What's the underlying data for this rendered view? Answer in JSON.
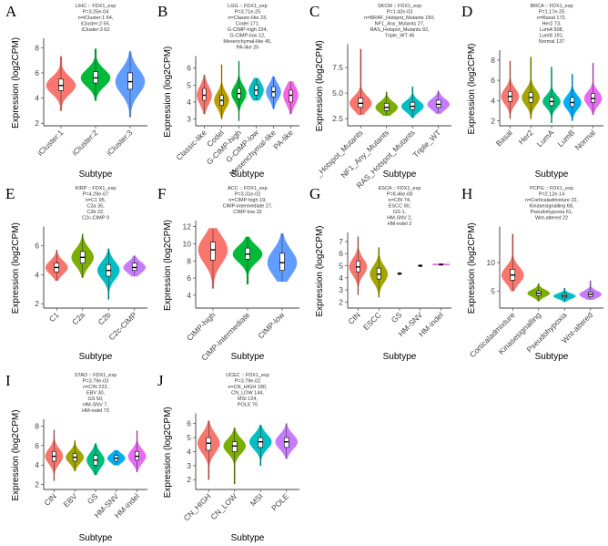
{
  "chart_data": [
    {
      "type": "violin",
      "panel": "A",
      "title": "LIHC :: FDX1_exp",
      "subtitle": [
        "P=3.25e-04",
        "n=iCluster:1 64,",
        "iCluster:2 55,",
        "iCluster:3 62"
      ],
      "xlabel": "Subtype",
      "ylabel": "Expression (log2CPM)",
      "categories": [
        "iCluster:1",
        "iCluster:2",
        "iCluster:3"
      ],
      "colors": [
        "#F8766D",
        "#00BA38",
        "#619CFF"
      ],
      "ylim": [
        1.8,
        8.6
      ],
      "yticks": [
        2,
        4,
        6,
        8
      ],
      "median": [
        5.0,
        5.6,
        5.3
      ],
      "q1": [
        4.6,
        5.2,
        4.7
      ],
      "q3": [
        5.5,
        6.1,
        6.0
      ],
      "min": [
        3.0,
        3.8,
        2.5
      ],
      "max": [
        7.3,
        7.9,
        7.7
      ]
    },
    {
      "type": "violin",
      "panel": "B",
      "title": "LGG :: FDX1_exp",
      "subtitle": [
        "P=3.71e-25",
        "n=Classic-like 23,",
        "Codel 171,",
        "G-CIMP-high 234,",
        "G-CIMP-low 12,",
        "Mesenchymal-like 45,",
        "PA-like 25"
      ],
      "xlabel": "Subtype",
      "ylabel": "Expression (log2CPM)",
      "categories": [
        "Classic-like",
        "Codel",
        "G-CIMP-high",
        "G-CIMP-low",
        "Mesenchymal-like",
        "PA-like"
      ],
      "colors": [
        "#F8766D",
        "#B79F00",
        "#00BA38",
        "#00BFC4",
        "#619CFF",
        "#F564E3"
      ],
      "ylim": [
        2.6,
        6.6
      ],
      "yticks": [
        3,
        4,
        5,
        6
      ],
      "median": [
        4.4,
        4.1,
        4.5,
        4.7,
        4.6,
        4.4
      ],
      "q1": [
        4.1,
        3.8,
        4.2,
        4.4,
        4.3,
        4.0
      ],
      "q3": [
        4.8,
        4.4,
        4.8,
        5.0,
        4.9,
        4.7
      ],
      "min": [
        3.3,
        3.0,
        2.9,
        4.1,
        3.6,
        3.3
      ],
      "max": [
        5.6,
        6.2,
        6.4,
        5.4,
        5.5,
        5.2
      ]
    },
    {
      "type": "violin",
      "panel": "C",
      "title": "SKCM :: FDX1_exp",
      "subtitle": [
        "P=1.42e-03",
        "n=BRAF_Hotspot_Mutants 150,",
        "NF1_Any_Mutants 27,",
        "RAS_Hotspot_Mutants 92,",
        "Triple_WT 46"
      ],
      "xlabel": "Subtype",
      "ylabel": "Expression (log2CPM)",
      "categories": [
        "_Hotspot_Mutants",
        "NF1_Any_Mutants",
        "RAS_Hotspot_Mutants",
        "Triple_WT"
      ],
      "colors": [
        "#F8766D",
        "#7CAE00",
        "#00BFC4",
        "#C77CFF"
      ],
      "ylim": [
        1.8,
        9.6
      ],
      "yticks": [
        2.5,
        {
          "value": 5,
          "label": "5.0"
        },
        7.5
      ],
      "median": [
        4.0,
        3.6,
        3.7,
        3.9
      ],
      "q1": [
        3.6,
        3.3,
        3.4,
        3.6
      ],
      "q3": [
        4.5,
        4.0,
        4.1,
        4.3
      ],
      "min": [
        2.9,
        2.8,
        2.6,
        3.0
      ],
      "max": [
        9.3,
        5.1,
        5.6,
        5.2
      ]
    },
    {
      "type": "violin",
      "panel": "D",
      "title": "BRCA :: FDX1_exp",
      "subtitle": [
        "P=1.17e-25",
        "n=Basal 172,",
        "Her2 73,",
        "LumA 508,",
        "LumB 191,",
        "Normal 137"
      ],
      "xlabel": "Subtype",
      "ylabel": "Expression (log2CPM)",
      "categories": [
        "Basal",
        "Her2",
        "LumA",
        "LumB",
        "Normal"
      ],
      "colors": [
        "#F8766D",
        "#A3A500",
        "#00BF7D",
        "#00B0F6",
        "#E76BF3"
      ],
      "ylim": [
        1.5,
        8.8
      ],
      "yticks": [
        2,
        4,
        6,
        8
      ],
      "median": [
        4.4,
        4.3,
        3.9,
        3.8,
        4.2
      ],
      "q1": [
        3.9,
        3.8,
        3.5,
        3.4,
        3.8
      ],
      "q3": [
        4.9,
        4.8,
        4.3,
        4.3,
        4.7
      ],
      "min": [
        2.2,
        2.2,
        1.8,
        2.0,
        2.6
      ],
      "max": [
        7.9,
        8.3,
        7.3,
        6.6,
        7.7
      ]
    },
    {
      "type": "violin",
      "panel": "E",
      "title": "KIRP :: FDX1_exp",
      "subtitle": [
        "P=4.29e-07",
        "n=C1 95,",
        "C2a 35,",
        "C2b 22,",
        "C2c-CIMP 9"
      ],
      "xlabel": "Subtype",
      "ylabel": "Expression (log2CPM)",
      "categories": [
        "C1",
        "C2a",
        "C2b",
        "C2c-CIMP"
      ],
      "colors": [
        "#F8766D",
        "#7CAE00",
        "#00BFC4",
        "#C77CFF"
      ],
      "ylim": [
        1.7,
        7.2
      ],
      "yticks": [
        2,
        4,
        6
      ],
      "median": [
        4.5,
        5.2,
        4.3,
        4.5
      ],
      "q1": [
        4.2,
        4.8,
        3.9,
        4.3
      ],
      "q3": [
        4.8,
        5.6,
        4.7,
        4.8
      ],
      "min": [
        3.6,
        3.8,
        2.3,
        3.9
      ],
      "max": [
        5.7,
        6.8,
        5.8,
        5.3
      ]
    },
    {
      "type": "violin",
      "panel": "F",
      "title": "ACC :: FDX1_exp",
      "subtitle": [
        "P=3.31e-02",
        "n=CIMP-high 19,",
        "CIMP-intermediate 27,",
        "CIMP-low 32"
      ],
      "xlabel": "Subtype",
      "ylabel": "Expression (log2CPM)",
      "categories": [
        "CIMP-high",
        "CIMP-intermediate",
        "CIMP-low"
      ],
      "colors": [
        "#F8766D",
        "#00BA38",
        "#619CFF"
      ],
      "ylim": [
        2.5,
        12.5
      ],
      "yticks": [
        4,
        6,
        8,
        10,
        12
      ],
      "median": [
        9.3,
        8.8,
        7.8
      ],
      "q1": [
        8.1,
        8.2,
        6.9
      ],
      "q3": [
        10.2,
        9.5,
        8.9
      ],
      "min": [
        4.8,
        5.3,
        5.6
      ],
      "max": [
        11.8,
        10.8,
        11.2
      ]
    },
    {
      "type": "violin",
      "panel": "G",
      "title": "ESCA :: FDX1_exp",
      "subtitle": [
        "P=8.46e-08",
        "n=CIN 74,",
        "ESCC 90,",
        "GS 1,",
        "HM-SNV 2,",
        "HM-indel 2"
      ],
      "xlabel": "Subtype",
      "ylabel": "Expression (log2CPM)",
      "categories": [
        "CIN",
        "ESCC",
        "GS",
        "HM-SNV",
        "HM-indel"
      ],
      "colors": [
        "#F8766D",
        "#A3A500",
        "#00BF7D",
        "#00B0F6",
        "#E76BF3"
      ],
      "ylim": [
        1.5,
        7.6
      ],
      "yticks": [
        2,
        3,
        4,
        5,
        6,
        7
      ],
      "median": [
        4.9,
        4.3,
        4.35,
        5.0,
        5.1
      ],
      "q1": [
        4.5,
        3.9,
        4.35,
        4.98,
        5.05
      ],
      "q3": [
        5.4,
        4.8,
        4.35,
        5.02,
        5.15
      ],
      "min": [
        2.6,
        2.4,
        4.35,
        4.98,
        5.05
      ],
      "max": [
        7.4,
        6.5,
        4.35,
        5.02,
        5.15
      ]
    },
    {
      "type": "violin",
      "panel": "H",
      "title": "PCPG :: FDX1_exp",
      "subtitle": [
        "P=2.12e-14",
        "n=Corticaladmixture 22,",
        "Kinasesignalling 68,",
        "Pseudohypoxia 61,",
        "Wnt-altered 22"
      ],
      "xlabel": "Subtype",
      "ylabel": "Expression (log2CPM)",
      "categories": [
        "Corticaladmixture",
        "Kinasesignalling",
        "Pseudohypoxia",
        "Wnt-altered"
      ],
      "colors": [
        "#F8766D",
        "#7CAE00",
        "#00BFC4",
        "#C77CFF"
      ],
      "ylim": [
        2,
        16
      ],
      "yticks": [
        5,
        10
      ],
      "median": [
        7.8,
        4.6,
        4.1,
        4.4
      ],
      "q1": [
        6.9,
        4.2,
        3.8,
        4.0
      ],
      "q3": [
        8.8,
        5.0,
        4.4,
        4.8
      ],
      "min": [
        5.0,
        3.2,
        3.1,
        3.5
      ],
      "max": [
        15.0,
        6.3,
        5.5,
        6.8
      ]
    },
    {
      "type": "violin",
      "panel": "I",
      "title": "STAD :: FDX1_exp",
      "subtitle": [
        "P=3.79e-03",
        "n=CIN 223,",
        "EBV 30,",
        "GS 50,",
        "HM-SNV 7,",
        "HM-indel 73"
      ],
      "xlabel": "Subtype",
      "ylabel": "Expression (log2CPM)",
      "categories": [
        "CIN",
        "EBV",
        "GS",
        "HM-SNV",
        "HM-indel"
      ],
      "colors": [
        "#F8766D",
        "#A3A500",
        "#00BF7D",
        "#00B0F6",
        "#E76BF3"
      ],
      "ylim": [
        1.5,
        8.5
      ],
      "yticks": [
        2,
        4,
        6,
        8
      ],
      "median": [
        4.9,
        4.8,
        4.5,
        4.7,
        4.9
      ],
      "q1": [
        4.4,
        4.4,
        4.0,
        4.4,
        4.5
      ],
      "q3": [
        5.4,
        5.2,
        5.0,
        5.0,
        5.4
      ],
      "min": [
        2.4,
        3.4,
        3.0,
        4.0,
        3.3
      ],
      "max": [
        7.6,
        6.5,
        6.2,
        5.5,
        7.5
      ]
    },
    {
      "type": "violin",
      "panel": "J",
      "title": "UCEC :: FDX1_exp",
      "subtitle": [
        "P=3.79e-02",
        "n=CN_HIGH 180,",
        "CN_LOW 144,",
        "MSI 124,",
        "POLE 76"
      ],
      "xlabel": "Subtype",
      "ylabel": "Expression (log2CPM)",
      "categories": [
        "CN_HIGH",
        "CN_LOW",
        "MSI",
        "POLE"
      ],
      "colors": [
        "#F8766D",
        "#7CAE00",
        "#00BFC4",
        "#C77CFF"
      ],
      "ylim": [
        1.3,
        6.6
      ],
      "yticks": [
        2,
        3,
        4,
        5,
        6
      ],
      "median": [
        4.6,
        4.4,
        4.7,
        4.7
      ],
      "q1": [
        4.1,
        4.0,
        4.3,
        4.3
      ],
      "q3": [
        5.0,
        4.7,
        5.0,
        5.0
      ],
      "min": [
        2.0,
        1.7,
        3.0,
        3.5
      ],
      "max": [
        6.2,
        5.7,
        5.9,
        6.0
      ]
    }
  ]
}
